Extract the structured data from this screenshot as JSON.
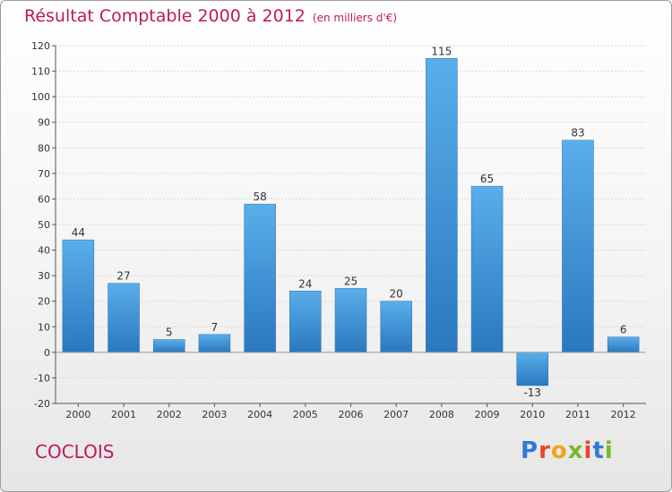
{
  "title": {
    "main": "Résultat Comptable 2000 à 2012",
    "sub": "(en milliers d'€)"
  },
  "commune": "COCLOIS",
  "logo": {
    "text": "Proxiti",
    "letter_colors": [
      "#2f7bd6",
      "#e8452c",
      "#f2a31b",
      "#7ab829",
      "#e8452c",
      "#2f7bd6",
      "#7ab829"
    ]
  },
  "colors": {
    "bar_light": "#5aaeea",
    "bar_dark": "#2a78bf",
    "title": "#c0185e",
    "grid": "#d8d8d8",
    "axis": "#555555"
  },
  "chart_data": {
    "type": "bar",
    "title": "Résultat Comptable 2000 à 2012",
    "xlabel": "",
    "ylabel": "(en milliers d'€)",
    "ylim": [
      -20,
      120
    ],
    "yticks": [
      -20,
      -10,
      0,
      10,
      20,
      30,
      40,
      50,
      60,
      70,
      80,
      90,
      100,
      110,
      120
    ],
    "categories": [
      "2000",
      "2001",
      "2002",
      "2003",
      "2004",
      "2005",
      "2006",
      "2007",
      "2008",
      "2009",
      "2010",
      "2011",
      "2012"
    ],
    "values": [
      44,
      27,
      5,
      7,
      58,
      24,
      25,
      20,
      115,
      65,
      -13,
      83,
      6
    ],
    "grid": true,
    "legend": "none"
  }
}
